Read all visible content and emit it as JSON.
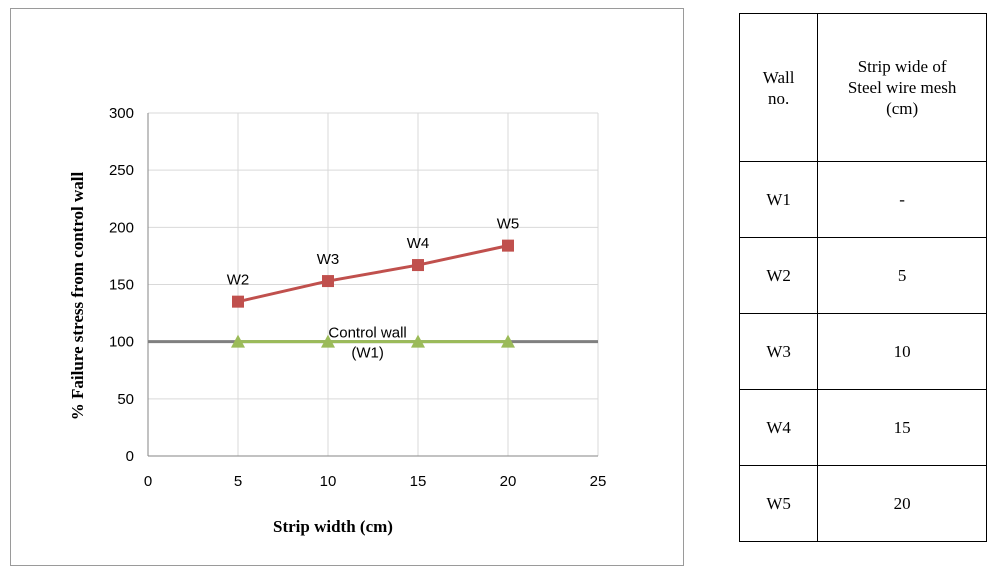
{
  "chart_data": {
    "type": "line",
    "title": "",
    "xlabel": "Strip width (cm)",
    "ylabel": "% Failure stress from  control wall",
    "xlim": [
      0,
      25
    ],
    "ylim": [
      0,
      300
    ],
    "x_ticks": [
      0,
      5,
      10,
      15,
      20,
      25
    ],
    "y_ticks": [
      0,
      50,
      100,
      150,
      200,
      250,
      300
    ],
    "grid": true,
    "series": [
      {
        "name": "",
        "color": "#c0504d",
        "marker": "square",
        "points": [
          {
            "x": 5,
            "y": 135,
            "label": "W2"
          },
          {
            "x": 10,
            "y": 153,
            "label": "W3"
          },
          {
            "x": 15,
            "y": 167,
            "label": "W4"
          },
          {
            "x": 20,
            "y": 184,
            "label": "W5"
          }
        ]
      },
      {
        "name": "",
        "color": "#9bbb59",
        "marker": "triangle",
        "points": [
          {
            "x": 5,
            "y": 100
          },
          {
            "x": 10,
            "y": 100
          },
          {
            "x": 15,
            "y": 100
          },
          {
            "x": 20,
            "y": 100
          }
        ]
      }
    ],
    "reference_line": {
      "y": 100,
      "color": "#808080"
    },
    "annotations": [
      "Control wall",
      "(W1)"
    ]
  },
  "table": {
    "headers": [
      "Wall no.",
      "Strip wide of Steel wire mesh (cm)"
    ],
    "header_lines": [
      [
        "Wall",
        "no."
      ],
      [
        "Strip wide of",
        "Steel wire mesh",
        "(cm)"
      ]
    ],
    "rows": [
      [
        "W1",
        "-"
      ],
      [
        "W2",
        "5"
      ],
      [
        "W3",
        "10"
      ],
      [
        "W4",
        "15"
      ],
      [
        "W5",
        "20"
      ]
    ]
  }
}
